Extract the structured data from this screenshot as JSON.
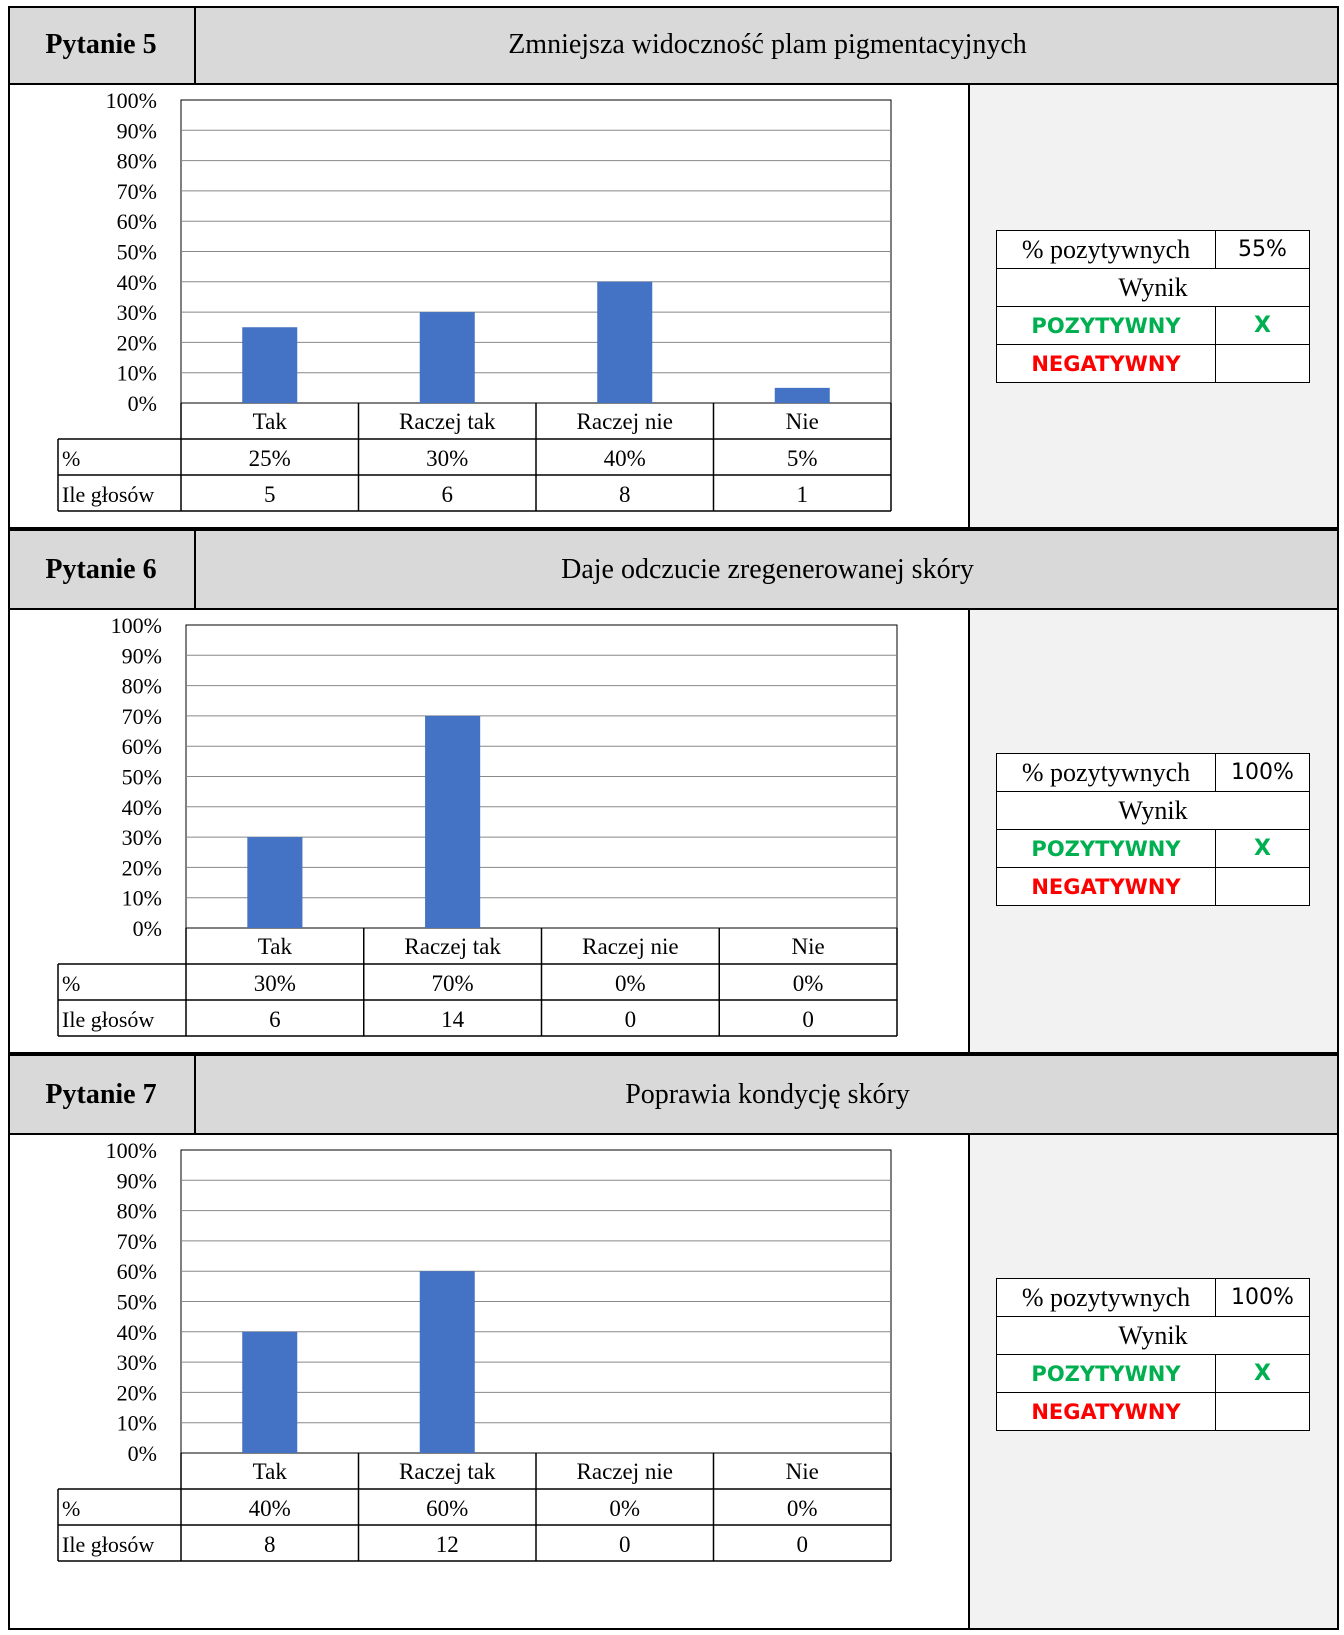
{
  "questions": [
    {
      "label": "Pytanie 5",
      "title": "Zmniejsza widoczność plam pigmentacyjnych",
      "row_labels": {
        "percent": "%",
        "votes": "Ile głosów"
      },
      "percent_cells": [
        "25%",
        "30%",
        "40%",
        "5%"
      ],
      "vote_cells": [
        "5",
        "6",
        "8",
        "1"
      ],
      "summary": {
        "positive_label": "% pozytywnych",
        "positive_value": "55%",
        "result_label": "Wynik",
        "positive_result": "POZYTYWNY",
        "positive_mark": "X",
        "negative_result": "NEGATYWNY",
        "negative_mark": ""
      }
    },
    {
      "label": "Pytanie 6",
      "title": "Daje odczucie zregenerowanej skóry",
      "row_labels": {
        "percent": "%",
        "votes": "Ile głosów"
      },
      "percent_cells": [
        "30%",
        "70%",
        "0%",
        "0%"
      ],
      "vote_cells": [
        "6",
        "14",
        "0",
        "0"
      ],
      "summary": {
        "positive_label": "% pozytywnych",
        "positive_value": "100%",
        "result_label": "Wynik",
        "positive_result": "POZYTYWNY",
        "positive_mark": "X",
        "negative_result": "NEGATYWNY",
        "negative_mark": ""
      }
    },
    {
      "label": "Pytanie 7",
      "title": "Poprawia kondycję skóry",
      "row_labels": {
        "percent": "%",
        "votes": "Ile głosów"
      },
      "percent_cells": [
        "40%",
        "60%",
        "0%",
        "0%"
      ],
      "vote_cells": [
        "8",
        "12",
        "0",
        "0"
      ],
      "summary": {
        "positive_label": "% pozytywnych",
        "positive_value": "100%",
        "result_label": "Wynik",
        "positive_result": "POZYTYWNY",
        "positive_mark": "X",
        "negative_result": "NEGATYWNY",
        "negative_mark": ""
      }
    }
  ],
  "chart_data": [
    {
      "type": "bar",
      "categories": [
        "Tak",
        "Raczej tak",
        "Raczej nie",
        "Nie"
      ],
      "values": [
        25,
        30,
        40,
        5
      ],
      "votes": [
        5,
        6,
        8,
        1
      ],
      "ylim": [
        0,
        100
      ],
      "yticks": [
        "0%",
        "10%",
        "20%",
        "30%",
        "40%",
        "50%",
        "60%",
        "70%",
        "80%",
        "90%",
        "100%"
      ],
      "grid": true,
      "bar_color": "#4472c4"
    },
    {
      "type": "bar",
      "categories": [
        "Tak",
        "Raczej tak",
        "Raczej nie",
        "Nie"
      ],
      "values": [
        30,
        70,
        0,
        0
      ],
      "votes": [
        6,
        14,
        0,
        0
      ],
      "ylim": [
        0,
        100
      ],
      "yticks": [
        "0%",
        "10%",
        "20%",
        "30%",
        "40%",
        "50%",
        "60%",
        "70%",
        "80%",
        "90%",
        "100%"
      ],
      "grid": true,
      "bar_color": "#4472c4"
    },
    {
      "type": "bar",
      "categories": [
        "Tak",
        "Raczej tak",
        "Raczej nie",
        "Nie"
      ],
      "values": [
        40,
        60,
        0,
        0
      ],
      "votes": [
        8,
        12,
        0,
        0
      ],
      "ylim": [
        0,
        100
      ],
      "yticks": [
        "0%",
        "10%",
        "20%",
        "30%",
        "40%",
        "50%",
        "60%",
        "70%",
        "80%",
        "90%",
        "100%"
      ],
      "grid": true,
      "bar_color": "#4472c4"
    }
  ]
}
